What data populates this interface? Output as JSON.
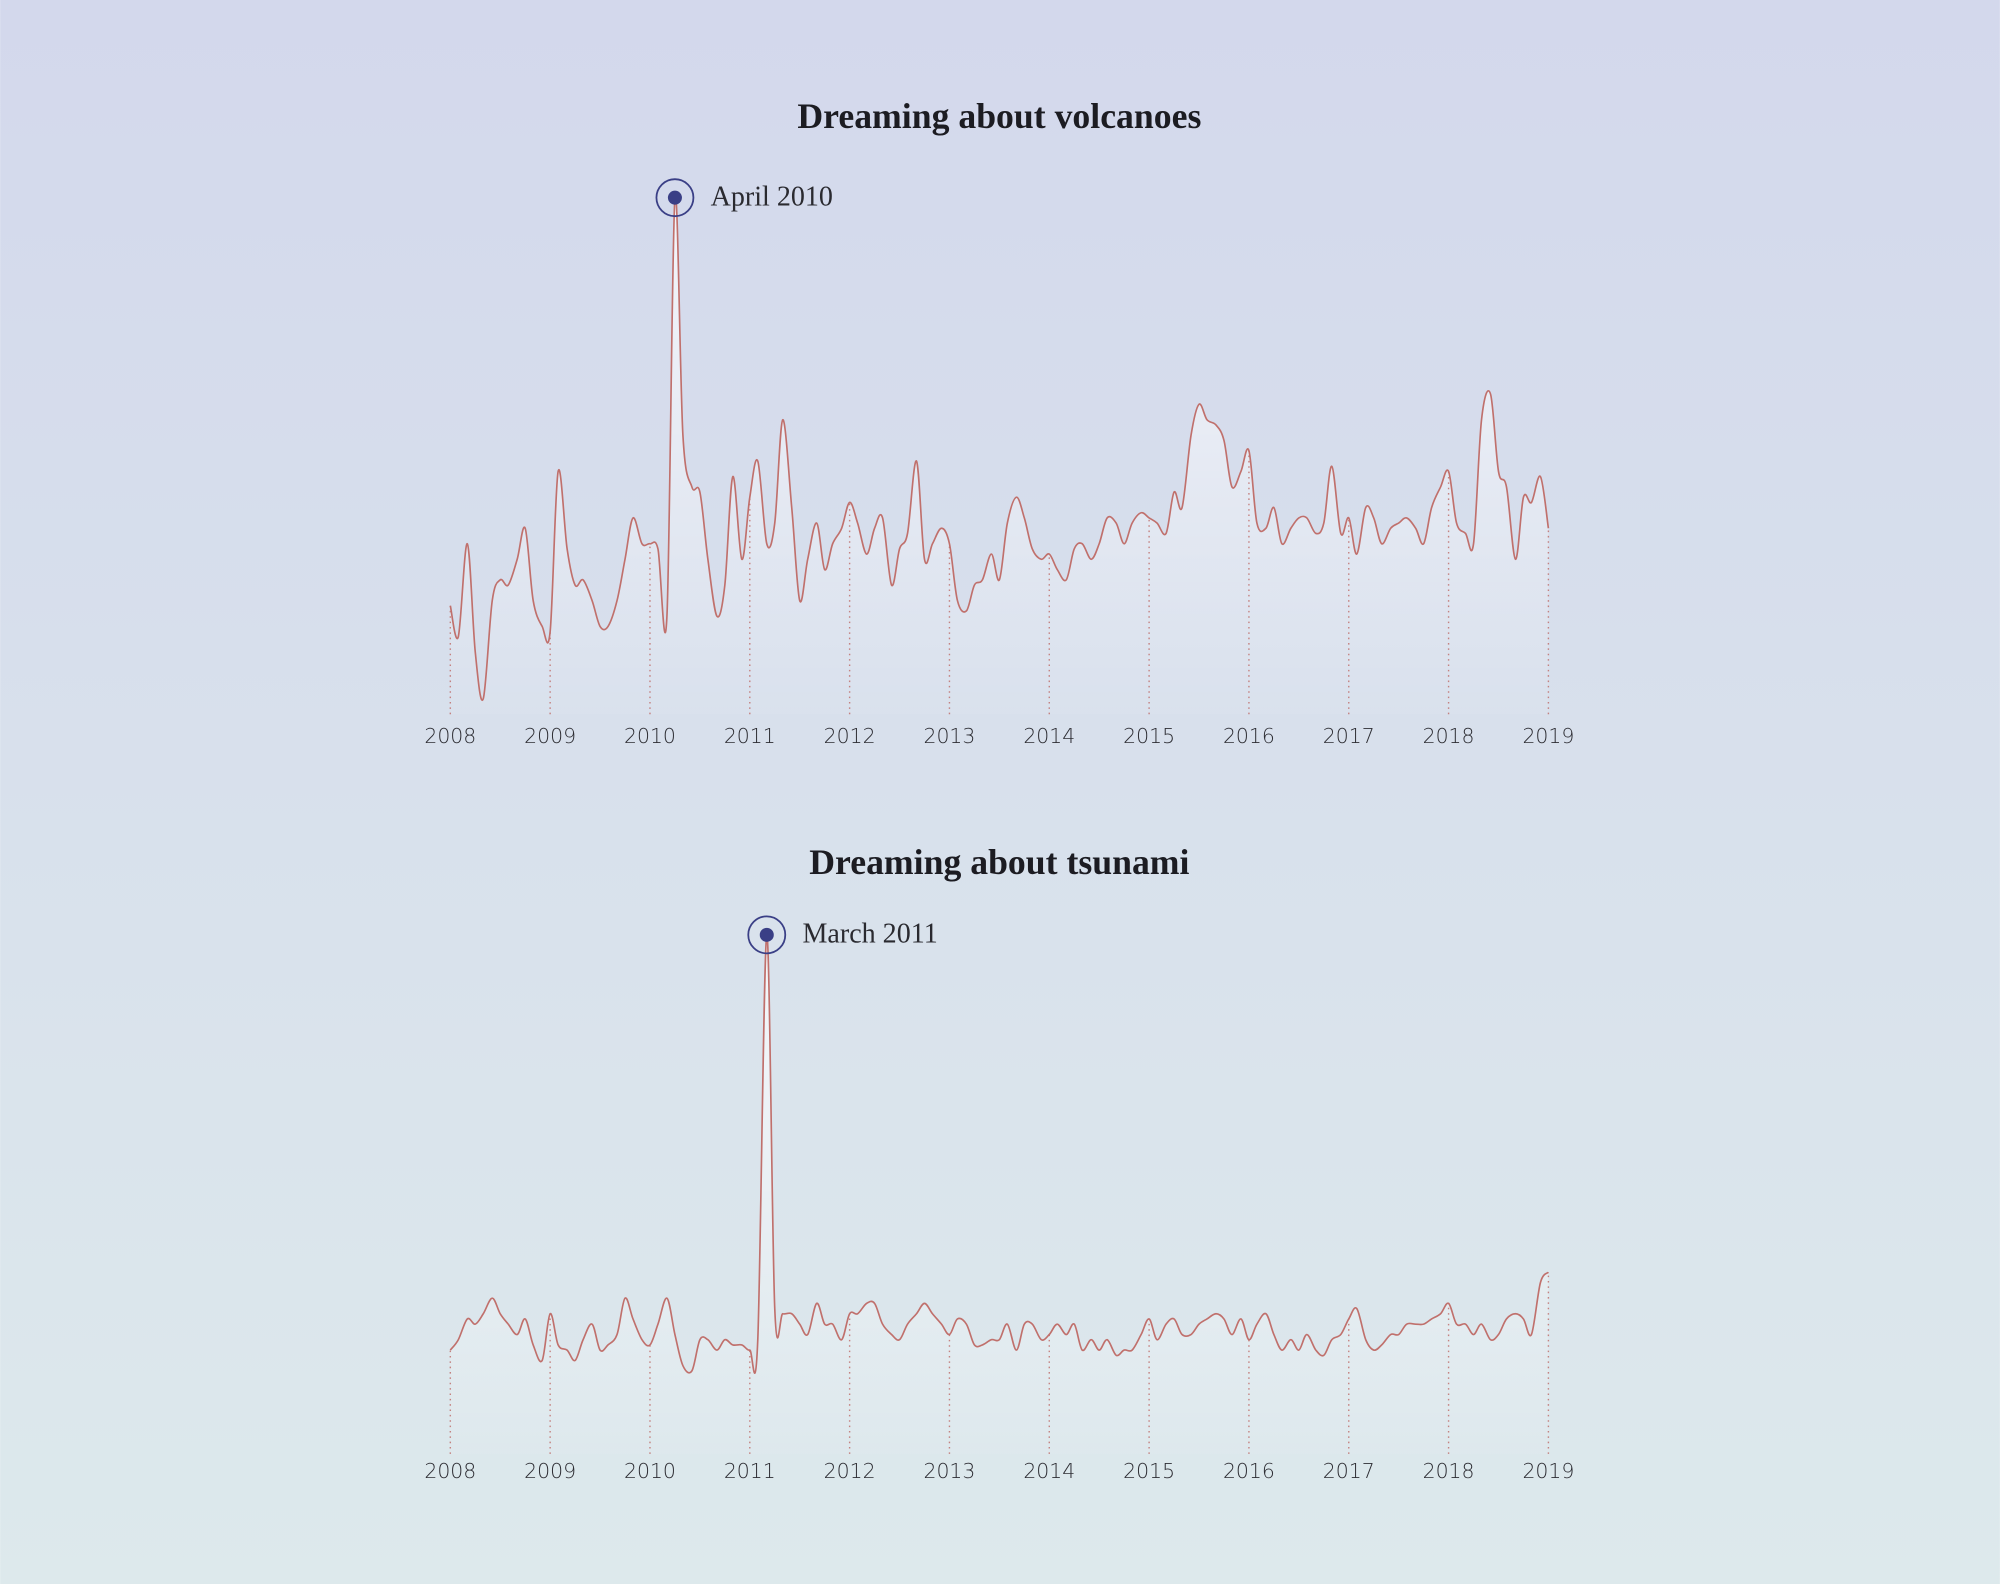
{
  "chart_data": [
    {
      "type": "line",
      "title": "Dreaming about volcanoes",
      "color": "#c0706c",
      "marker_color": "#3a3f86",
      "annotations": [
        {
          "text": "April 2010"
        }
      ],
      "xlim": [
        2008,
        2019
      ],
      "xticks": [
        2008,
        2009,
        2010,
        2011,
        2012,
        2013,
        2014,
        2015,
        2016,
        2017,
        2018,
        2019
      ],
      "ylim": [
        0,
        100
      ],
      "x": [
        2008,
        2008.08,
        2008.17,
        2008.25,
        2008.33,
        2008.42,
        2008.5,
        2008.58,
        2008.67,
        2008.75,
        2008.83,
        2008.92,
        2009,
        2009.08,
        2009.17,
        2009.25,
        2009.33,
        2009.42,
        2009.5,
        2009.58,
        2009.67,
        2009.75,
        2009.83,
        2009.92,
        2010,
        2010.08,
        2010.17,
        2010.25,
        2010.33,
        2010.42,
        2010.5,
        2010.58,
        2010.67,
        2010.75,
        2010.83,
        2010.92,
        2011,
        2011.08,
        2011.17,
        2011.25,
        2011.33,
        2011.42,
        2011.5,
        2011.58,
        2011.67,
        2011.75,
        2011.83,
        2011.92,
        2012,
        2012.08,
        2012.17,
        2012.25,
        2012.33,
        2012.42,
        2012.5,
        2012.58,
        2012.67,
        2012.75,
        2012.83,
        2012.92,
        2013,
        2013.08,
        2013.17,
        2013.25,
        2013.33,
        2013.42,
        2013.5,
        2013.58,
        2013.67,
        2013.75,
        2013.83,
        2013.92,
        2014,
        2014.08,
        2014.17,
        2014.25,
        2014.33,
        2014.42,
        2014.5,
        2014.58,
        2014.67,
        2014.75,
        2014.83,
        2014.92,
        2015,
        2015.08,
        2015.17,
        2015.25,
        2015.33,
        2015.42,
        2015.5,
        2015.58,
        2015.67,
        2015.75,
        2015.83,
        2015.92,
        2016,
        2016.08,
        2016.17,
        2016.25,
        2016.33,
        2016.42,
        2016.5,
        2016.58,
        2016.67,
        2016.75,
        2016.83,
        2016.92,
        2017,
        2017.08,
        2017.17,
        2017.25,
        2017.33,
        2017.42,
        2017.5,
        2017.58,
        2017.67,
        2017.75,
        2017.83,
        2017.92,
        2018,
        2018.08,
        2018.17,
        2018.25,
        2018.33,
        2018.42,
        2018.5,
        2018.58,
        2018.67,
        2018.75,
        2018.83,
        2018.92,
        2019
      ],
      "values": [
        21,
        15,
        33,
        12,
        3,
        22,
        26,
        25,
        30,
        36,
        22,
        17,
        16,
        47,
        32,
        25,
        26,
        22,
        17,
        17,
        22,
        30,
        38,
        33,
        33,
        32,
        19,
        100,
        54,
        44,
        43,
        30,
        19,
        25,
        46,
        30,
        42,
        49,
        33,
        37,
        57,
        40,
        22,
        30,
        37,
        28,
        33,
        36,
        41,
        37,
        31,
        36,
        38,
        25,
        32,
        35,
        49,
        30,
        33,
        36,
        33,
        22,
        20,
        25,
        26,
        31,
        26,
        37,
        42,
        38,
        32,
        30,
        31,
        28,
        26,
        32,
        33,
        30,
        33,
        38,
        37,
        33,
        37,
        39,
        38,
        37,
        35,
        43,
        40,
        54,
        60,
        57,
        56,
        53,
        44,
        47,
        51,
        37,
        36,
        40,
        33,
        36,
        38,
        38,
        35,
        37,
        48,
        35,
        38,
        31,
        40,
        38,
        33,
        36,
        37,
        38,
        36,
        33,
        40,
        44,
        47,
        37,
        35,
        33,
        57,
        62,
        47,
        44,
        30,
        42,
        41,
        46,
        36
      ]
    },
    {
      "type": "line",
      "title": "Dreaming about tsunami",
      "color": "#c0706c",
      "marker_color": "#3a3f86",
      "annotations": [
        {
          "text": "March 2011"
        }
      ],
      "xlim": [
        2008,
        2019
      ],
      "xticks": [
        2008,
        2009,
        2010,
        2011,
        2012,
        2013,
        2014,
        2015,
        2016,
        2017,
        2018,
        2019
      ],
      "ylim": [
        0,
        100
      ],
      "x": [
        2008,
        2008.08,
        2008.17,
        2008.25,
        2008.33,
        2008.42,
        2008.5,
        2008.58,
        2008.67,
        2008.75,
        2008.83,
        2008.92,
        2009,
        2009.08,
        2009.17,
        2009.25,
        2009.33,
        2009.42,
        2009.5,
        2009.58,
        2009.67,
        2009.75,
        2009.83,
        2009.92,
        2010,
        2010.08,
        2010.17,
        2010.25,
        2010.33,
        2010.42,
        2010.5,
        2010.58,
        2010.67,
        2010.75,
        2010.83,
        2010.92,
        2011,
        2011.08,
        2011.17,
        2011.25,
        2011.33,
        2011.42,
        2011.5,
        2011.58,
        2011.67,
        2011.75,
        2011.83,
        2011.92,
        2012,
        2012.08,
        2012.17,
        2012.25,
        2012.33,
        2012.42,
        2012.5,
        2012.58,
        2012.67,
        2012.75,
        2012.83,
        2012.92,
        2013,
        2013.08,
        2013.17,
        2013.25,
        2013.33,
        2013.42,
        2013.5,
        2013.58,
        2013.67,
        2013.75,
        2013.83,
        2013.92,
        2014,
        2014.08,
        2014.17,
        2014.25,
        2014.33,
        2014.42,
        2014.5,
        2014.58,
        2014.67,
        2014.75,
        2014.83,
        2014.92,
        2015,
        2015.08,
        2015.17,
        2015.25,
        2015.33,
        2015.42,
        2015.5,
        2015.58,
        2015.67,
        2015.75,
        2015.83,
        2015.92,
        2016,
        2016.08,
        2016.17,
        2016.25,
        2016.33,
        2016.42,
        2016.5,
        2016.58,
        2016.67,
        2016.75,
        2016.83,
        2016.92,
        2017,
        2017.08,
        2017.17,
        2017.25,
        2017.33,
        2017.42,
        2017.5,
        2017.58,
        2017.67,
        2017.75,
        2017.83,
        2017.92,
        2018,
        2018.08,
        2018.17,
        2018.25,
        2018.33,
        2018.42,
        2018.5,
        2018.58,
        2018.67,
        2018.75,
        2018.83,
        2018.92,
        2019
      ],
      "values": [
        20,
        22,
        26,
        25,
        27,
        30,
        27,
        25,
        23,
        26,
        21,
        18,
        27,
        21,
        20,
        18,
        22,
        25,
        20,
        21,
        23,
        30,
        26,
        22,
        21,
        25,
        30,
        23,
        17,
        16,
        22,
        22,
        20,
        22,
        21,
        21,
        20,
        22,
        100,
        28,
        27,
        27,
        25,
        23,
        29,
        25,
        25,
        22,
        27,
        27,
        29,
        29,
        25,
        23,
        22,
        25,
        27,
        29,
        27,
        25,
        23,
        26,
        25,
        21,
        21,
        22,
        22,
        25,
        20,
        25,
        25,
        22,
        23,
        25,
        23,
        25,
        20,
        22,
        20,
        22,
        19,
        20,
        20,
        23,
        26,
        22,
        25,
        26,
        23,
        23,
        25,
        26,
        27,
        26,
        23,
        26,
        22,
        25,
        27,
        23,
        20,
        22,
        20,
        23,
        20,
        19,
        22,
        23,
        26,
        28,
        22,
        20,
        21,
        23,
        23,
        25,
        25,
        25,
        26,
        27,
        29,
        25,
        25,
        23,
        25,
        22,
        23,
        26,
        27,
        26,
        23,
        33,
        35
      ]
    }
  ]
}
